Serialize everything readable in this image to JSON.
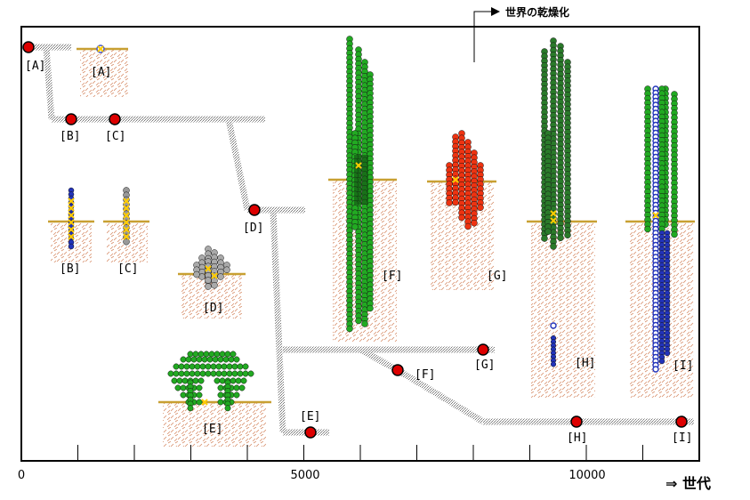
{
  "annotation": "世界の乾燥化",
  "axis_caption": "⇒ 世代",
  "x_ticks": [
    "0",
    "5000",
    "10000"
  ],
  "nodes": {
    "A": "[A]",
    "B": "[B]",
    "C": "[C]",
    "D": "[D]",
    "E": "[E]",
    "F": "[F]",
    "G": "[G]",
    "H": "[H]",
    "I": "[I]"
  },
  "panels": {
    "A": "[A]",
    "B": "[B]",
    "C": "[C]",
    "D": "[D]",
    "E": "[E]",
    "F": "[F]",
    "G": "[G]",
    "H": "[H]",
    "I": "[I]"
  },
  "colors": {
    "node": "#dd0000",
    "ground": "#c8a032",
    "soil": "#cc5533",
    "green": "#22aa22",
    "dark_green": "#226622",
    "blue": "#2233bb",
    "red": "#ee3311",
    "grey": "#999999",
    "marker": "#ffcc00"
  }
}
